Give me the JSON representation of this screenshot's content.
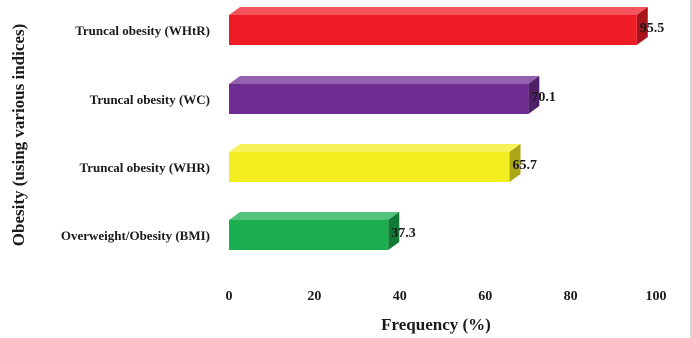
{
  "chart_data": {
    "type": "bar",
    "orientation": "horizontal",
    "style": "3d",
    "categories": [
      "Truncal obesity (WHtR)",
      "Truncal obesity (WC)",
      "Truncal obesity (WHR)",
      "Overweight/Obesity (BMI)"
    ],
    "values": [
      95.5,
      70.1,
      65.7,
      37.3
    ],
    "value_labels": [
      "95.5",
      "70.1",
      "65.7",
      "37.3"
    ],
    "colors": [
      "#ee1c24",
      "#6f2c91",
      "#f4ee20",
      "#1aae4f"
    ],
    "xlabel": "Frequency (%)",
    "ylabel": "Obesity (using various indices)",
    "xlim": [
      0,
      100
    ],
    "xticks": [
      0,
      20,
      40,
      60,
      80,
      100
    ],
    "xtick_labels": [
      "0",
      "20",
      "40",
      "60",
      "80",
      "100"
    ],
    "grid": false,
    "legend": "none"
  }
}
